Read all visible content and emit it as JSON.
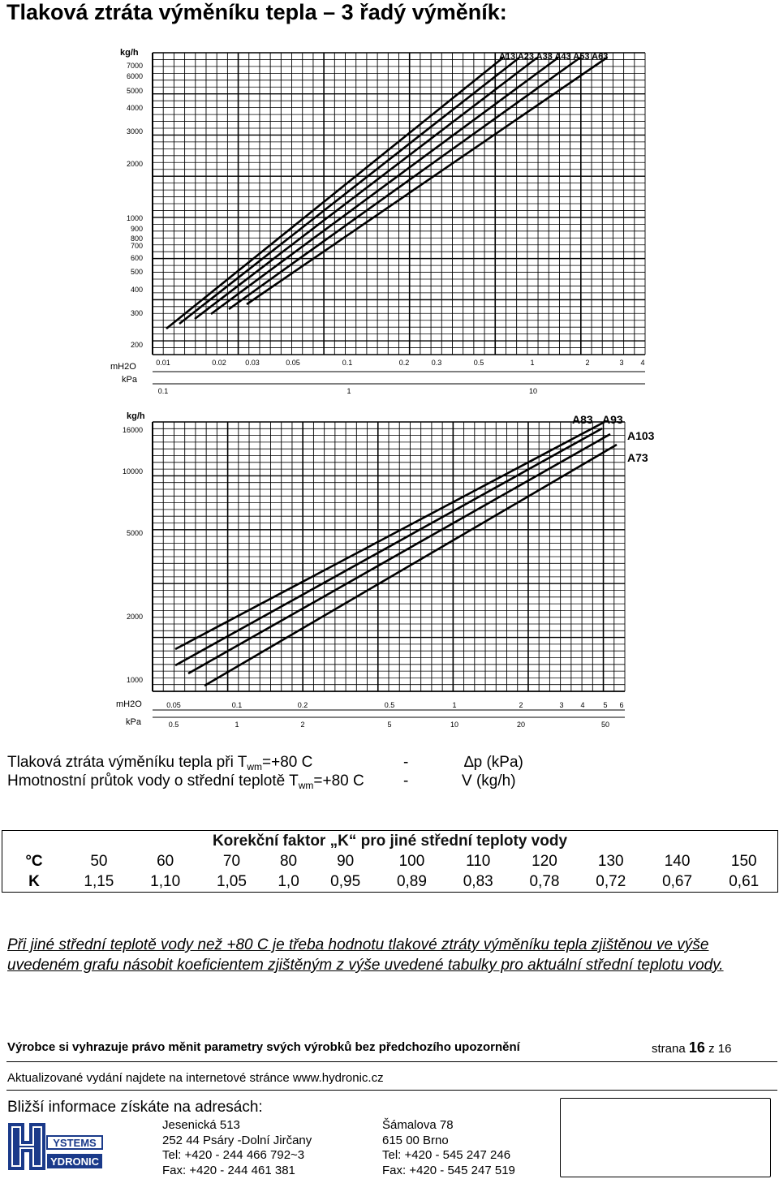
{
  "page_title": "Tlaková ztráta výměníku tepla – 3 řadý výměník:",
  "chart_top": {
    "y_unit": "kg/h",
    "y_ticks": [
      "7000",
      "6000",
      "5000",
      "4000",
      "3000",
      "2000",
      "1000",
      "900",
      "800",
      "700",
      "600",
      "500",
      "400",
      "300",
      "200"
    ],
    "x_unit_mh2o": "mH2O",
    "x_ticks_mh2o": [
      "0.01",
      "0.02",
      "0.03",
      "0.05",
      "0.1",
      "0.2",
      "0.3",
      "0.5",
      "1",
      "2",
      "3",
      "4"
    ],
    "x_unit_kpa": "kPa",
    "x_ticks_kpa": [
      "0.1",
      "1",
      "10"
    ],
    "legend": "A13 A23 A33 A43 A53 A63"
  },
  "chart_bottom": {
    "y_unit": "kg/h",
    "y_ticks": [
      "16000",
      "10000",
      "5000",
      "2000",
      "1000"
    ],
    "x_unit_mh2o": "mH2O",
    "x_ticks_mh2o": [
      "0.05",
      "0.1",
      "0.2",
      "0.5",
      "1",
      "2",
      "3",
      "4",
      "5",
      "6"
    ],
    "x_unit_kpa": "kPa",
    "x_ticks_kpa": [
      "0.5",
      "1",
      "2",
      "5",
      "10",
      "20",
      "50"
    ],
    "labels": [
      "A83",
      "A93",
      "A103",
      "A73"
    ]
  },
  "legend_lines": {
    "l1_a": "Tlaková ztráta výměníku tepla při T",
    "l1_sub": "wm",
    "l1_b": "=+80 C",
    "l1_dash": "-",
    "l1_right": "∆p (kPa)",
    "l2_a": "Hmotnostní průtok vody o střední teplotě T",
    "l2_sub": "wm",
    "l2_b": "=+80 C",
    "l2_dash": "-",
    "l2_right": "V (kg/h)"
  },
  "k_table": {
    "header": "Korekční faktor „K“ pro jiné střední teploty vody",
    "row_c_label": "°C",
    "row_c": [
      "50",
      "60",
      "70",
      "80",
      "90",
      "100",
      "110",
      "120",
      "130",
      "140",
      "150"
    ],
    "row_k_label": "K",
    "row_k": [
      "1,15",
      "1,10",
      "1,05",
      "1,0",
      "0,95",
      "0,89",
      "0,83",
      "0,78",
      "0,72",
      "0,67",
      "0,61"
    ]
  },
  "note": "Při jiné střední teplotě vody než +80 C je třeba hodnotu tlakové ztráty výměníku tepla zjištěnou ve výše uvedeném grafu násobit koeficientem zjištěným z výše uvedené tabulky pro aktuální střední teplotu vody.",
  "footer": {
    "disclaimer": "Výrobce si vyhrazuje právo měnit parametry svých výrobků bez předchozího upozornění",
    "page_label": "strana",
    "page_num": "16",
    "page_of": "z 16",
    "update": "Aktualizované vydání najdete na internetové stránce www.hydronic.cz",
    "info": "Bližší informace získáte na adresách:",
    "logo_top": "YSTEMS",
    "logo_bottom": "YDRONIC",
    "addr1": [
      "Jesenická 513",
      "252 44 Psáry  -Dolní Jirčany",
      "Tel:  +420 - 244 466 792~3",
      "Fax: +420 - 244 461 381"
    ],
    "addr2": [
      "Šámalova 78",
      "615 00 Brno",
      "Tel:  +420 - 545 247 246",
      "Fax: +420 - 545 247 519"
    ]
  }
}
